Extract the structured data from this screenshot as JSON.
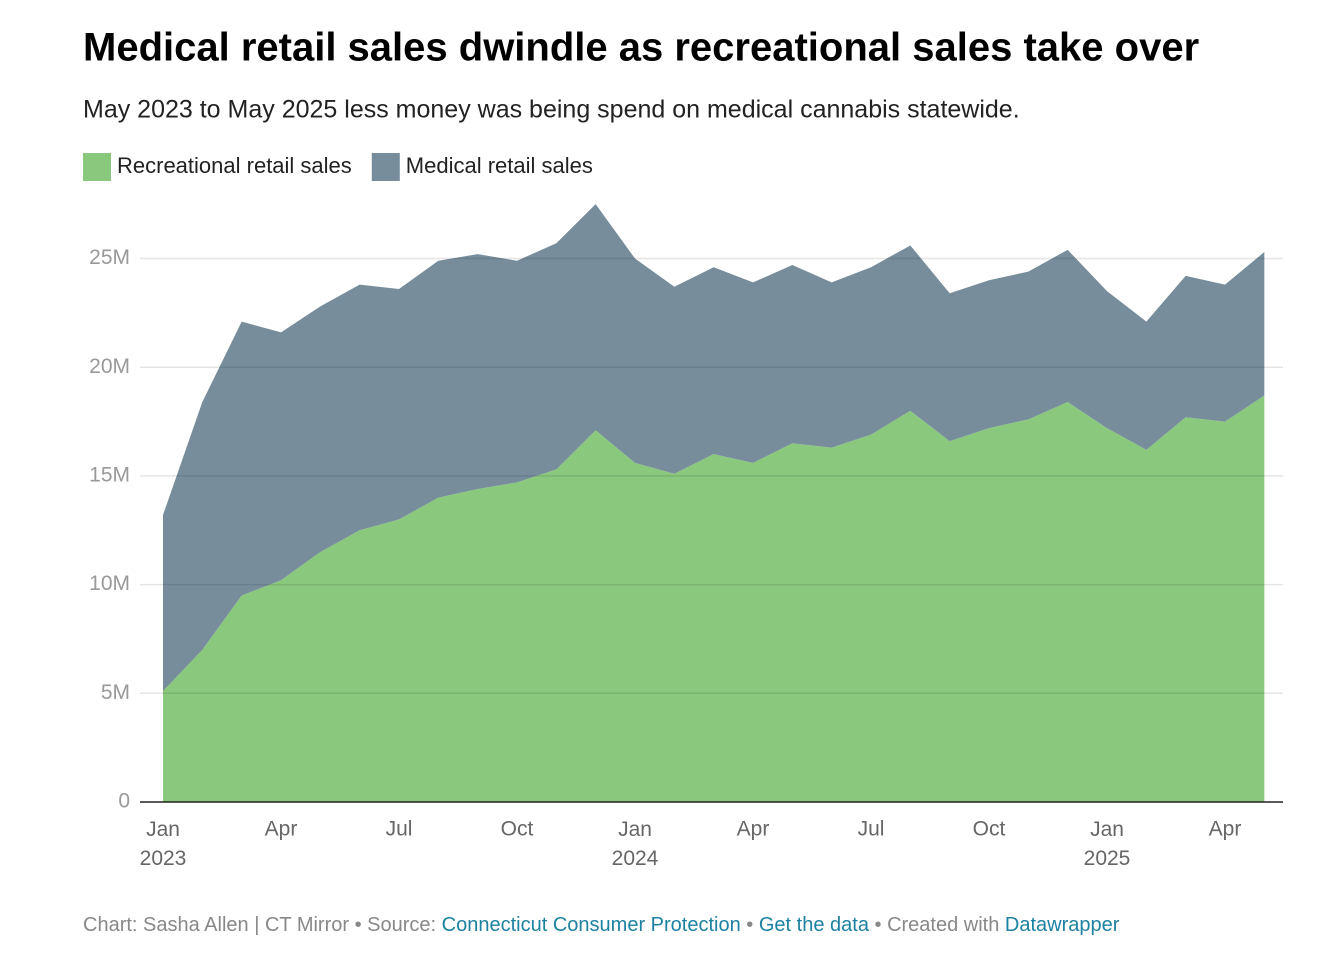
{
  "chart_data": {
    "type": "stacked-area",
    "title": "Medical retail sales dwindle as recreational sales take over",
    "subtitle": "May 2023 to May 2025 less money was being spend on medical cannabis statewide.",
    "x": [
      "2023-01",
      "2023-02",
      "2023-03",
      "2023-04",
      "2023-05",
      "2023-06",
      "2023-07",
      "2023-08",
      "2023-09",
      "2023-10",
      "2023-11",
      "2023-12",
      "2024-01",
      "2024-02",
      "2024-03",
      "2024-04",
      "2024-05",
      "2024-06",
      "2024-07",
      "2024-08",
      "2024-09",
      "2024-10",
      "2024-11",
      "2024-12",
      "2025-01",
      "2025-02",
      "2025-03",
      "2025-04",
      "2025-05"
    ],
    "series": [
      {
        "name": "Recreational retail sales",
        "color": "#8ac87e",
        "values": [
          5.1,
          7.0,
          9.5,
          10.2,
          11.5,
          12.5,
          13.0,
          14.0,
          14.4,
          14.7,
          15.3,
          17.1,
          15.6,
          15.1,
          16.0,
          15.6,
          16.5,
          16.3,
          16.9,
          18.0,
          16.6,
          17.2,
          17.6,
          18.4,
          17.2,
          16.2,
          17.7,
          17.5,
          18.7
        ]
      },
      {
        "name": "Medical retail sales",
        "color": "#778d9c",
        "values": [
          8.1,
          11.4,
          12.6,
          11.4,
          11.3,
          11.3,
          10.6,
          10.9,
          10.8,
          10.2,
          10.4,
          10.4,
          9.4,
          8.6,
          8.6,
          8.3,
          8.2,
          7.6,
          7.7,
          7.6,
          6.8,
          6.8,
          6.8,
          7.0,
          6.3,
          5.9,
          6.5,
          6.3,
          6.6
        ]
      }
    ],
    "ylim": [
      0,
      27.6
    ],
    "yticks": [
      0,
      {
        "value": 5,
        "label": "5M"
      },
      {
        "value": 10,
        "label": "10M"
      },
      {
        "value": 15,
        "label": "15M"
      },
      {
        "value": 20,
        "label": "20M"
      },
      {
        "value": 25,
        "label": "25M"
      }
    ],
    "xticks": [
      {
        "value": "2023-01",
        "label": "Jan 2023"
      },
      {
        "value": "2023-04",
        "label": "Apr"
      },
      {
        "value": "2023-07",
        "label": "Jul"
      },
      {
        "value": "2023-10",
        "label": "Oct"
      },
      {
        "value": "2024-01",
        "label": "Jan 2024"
      },
      {
        "value": "2024-04",
        "label": "Apr"
      },
      {
        "value": "2024-07",
        "label": "Jul"
      },
      {
        "value": "2024-10",
        "label": "Oct"
      },
      {
        "value": "2025-01",
        "label": "Jan 2025"
      },
      {
        "value": "2025-04",
        "label": "Apr"
      }
    ],
    "grid": true,
    "legend": "top-left"
  },
  "footer": {
    "credit": "Chart: Sasha Allen | CT Mirror",
    "separator": "•",
    "source_label": "Source:",
    "source": "Connecticut Consumer Protection",
    "get_data": "Get the data",
    "created_label": "Created with",
    "created": "Datawrapper"
  }
}
